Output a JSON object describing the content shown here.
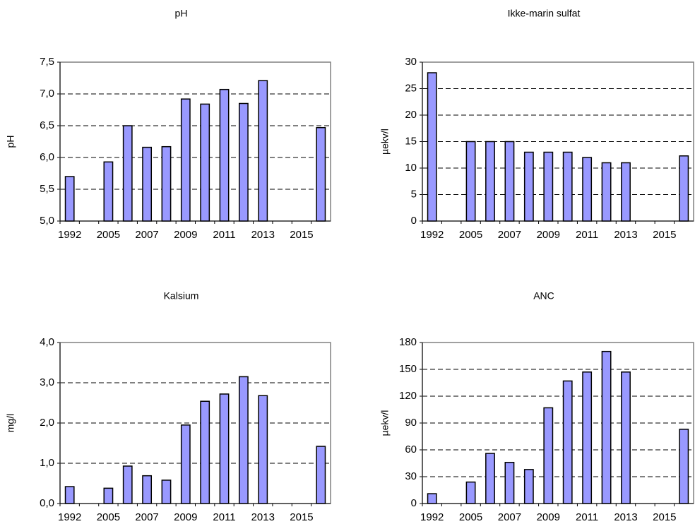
{
  "chart_data": [
    {
      "type": "bar",
      "title": "pH",
      "y_label": "pH",
      "color": "#9999ff",
      "grid": true,
      "categories": [
        "1992",
        null,
        "2005",
        null,
        "2007",
        null,
        "2009",
        null,
        "2011",
        null,
        "2013",
        null,
        "2015",
        null
      ],
      "values": [
        5.7,
        null,
        5.93,
        6.5,
        6.16,
        6.17,
        6.92,
        6.84,
        7.07,
        6.85,
        7.21,
        null,
        null,
        6.47
      ],
      "ylim": [
        5,
        7.5
      ],
      "yticks": [
        {
          "value": 5,
          "label": "5,0"
        },
        {
          "value": 5.5,
          "label": "5,5"
        },
        {
          "value": 6,
          "label": "6,0"
        },
        {
          "value": 6.5,
          "label": "6,5"
        },
        {
          "value": 7,
          "label": "7,0"
        },
        {
          "value": 7.5,
          "label": "7,5"
        }
      ]
    },
    {
      "type": "bar",
      "title": "Ikke-marin sulfat",
      "y_label": "µekv/l",
      "color": "#9999ff",
      "grid": true,
      "categories": [
        "1992",
        null,
        "2005",
        null,
        "2007",
        null,
        "2009",
        null,
        "2011",
        null,
        "2013",
        null,
        "2015",
        null
      ],
      "values": [
        28,
        null,
        15,
        15,
        15,
        13,
        13,
        13,
        12,
        11,
        11,
        null,
        null,
        12.3
      ],
      "ylim": [
        0,
        30
      ],
      "yticks": [
        0,
        5,
        10,
        15,
        20,
        25,
        30
      ]
    },
    {
      "type": "bar",
      "title": "Kalsium",
      "y_label": "mg/l",
      "color": "#9999ff",
      "grid": true,
      "categories": [
        "1992",
        null,
        "2005",
        null,
        "2007",
        null,
        "2009",
        null,
        "2011",
        null,
        "2013",
        null,
        "2015",
        null
      ],
      "values": [
        0.42,
        null,
        0.38,
        0.93,
        0.69,
        0.58,
        1.95,
        2.54,
        2.72,
        3.15,
        2.68,
        null,
        null,
        1.42
      ],
      "ylim": [
        0,
        4
      ],
      "yticks": [
        {
          "value": 0,
          "label": "0,0"
        },
        {
          "value": 1,
          "label": "1,0"
        },
        {
          "value": 2,
          "label": "2,0"
        },
        {
          "value": 3,
          "label": "3,0"
        },
        {
          "value": 4,
          "label": "4,0"
        }
      ]
    },
    {
      "type": "bar",
      "title": "ANC",
      "y_label": "µekv/l",
      "color": "#9999ff",
      "grid": true,
      "categories": [
        "1992",
        null,
        "2005",
        null,
        "2007",
        null,
        "2009",
        null,
        "2011",
        null,
        "2013",
        null,
        "2015",
        null
      ],
      "values": [
        11,
        null,
        24,
        56,
        46,
        38,
        107,
        137,
        147,
        170,
        147,
        null,
        null,
        83
      ],
      "ylim": [
        0,
        180
      ],
      "yticks": [
        0,
        30,
        60,
        90,
        120,
        150,
        180
      ]
    }
  ]
}
